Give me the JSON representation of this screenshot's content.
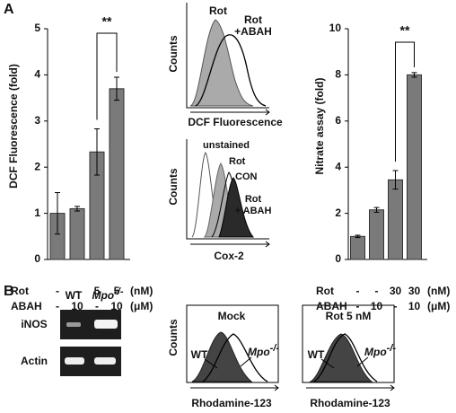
{
  "panels": [
    "A",
    "B"
  ],
  "chart_data": [
    {
      "type": "bar",
      "ylabel": "DCF Fluorescence (fold)",
      "values": [
        1.0,
        1.1,
        2.33,
        3.7
      ],
      "errors": [
        0.45,
        0.05,
        0.5,
        0.25
      ],
      "color": "#7a7a7a",
      "ylim": [
        0,
        5
      ],
      "yticks": [
        0,
        1,
        2,
        3,
        4,
        5
      ],
      "annotation": "**",
      "treatments": [
        {
          "name": "Rot",
          "levels": [
            "-",
            "-",
            "5",
            "5"
          ],
          "unit": "(nM)"
        },
        {
          "name": "ABAH",
          "levels": [
            "-",
            "10",
            "-",
            "10"
          ],
          "unit": "(μM)"
        }
      ]
    },
    {
      "type": "bar",
      "ylabel": "Nitrate assay (fold)",
      "values": [
        1.0,
        2.15,
        3.45,
        8.0
      ],
      "errors": [
        0.05,
        0.1,
        0.4,
        0.1
      ],
      "color": "#7a7a7a",
      "ylim": [
        0,
        10
      ],
      "yticks": [
        0,
        2,
        4,
        6,
        8,
        10
      ],
      "annotation": "**",
      "treatments": [
        {
          "name": "Rot",
          "levels": [
            "-",
            "-",
            "30",
            "30"
          ],
          "unit": "(nM)"
        },
        {
          "name": "ABAH",
          "levels": [
            "-",
            "10",
            "-",
            "10"
          ],
          "unit": "(μM)"
        }
      ]
    }
  ],
  "histograms": [
    {
      "ylabel": "Counts",
      "xlabel": "DCF Fluorescence",
      "labels": [
        [
          "Rot"
        ],
        [
          "Rot",
          "+ABAH"
        ]
      ]
    },
    {
      "ylabel": "Counts",
      "xlabel": "Cox-2",
      "labels": [
        [
          "unstained"
        ],
        [
          "Rot"
        ],
        [
          "CON"
        ],
        [
          "Rot",
          "+ ABAH"
        ]
      ]
    },
    {
      "ylabel": "Counts",
      "title": "Mock",
      "xlabel": "Rhodamine-123",
      "labels": [
        "WT"
      ],
      "mutant": {
        "base": "Mpo",
        "sup": "-/-"
      }
    },
    {
      "title": "Rot  5 nM",
      "xlabel": "Rhodamine-123",
      "labels": [
        "WT"
      ],
      "mutant": {
        "base": "Mpo",
        "sup": "-/-"
      }
    }
  ],
  "gel": {
    "lanes": [
      "WT",
      {
        "base": "Mpo",
        "sup": "-/-"
      }
    ],
    "rows": [
      "iNOS",
      "Actin"
    ]
  }
}
